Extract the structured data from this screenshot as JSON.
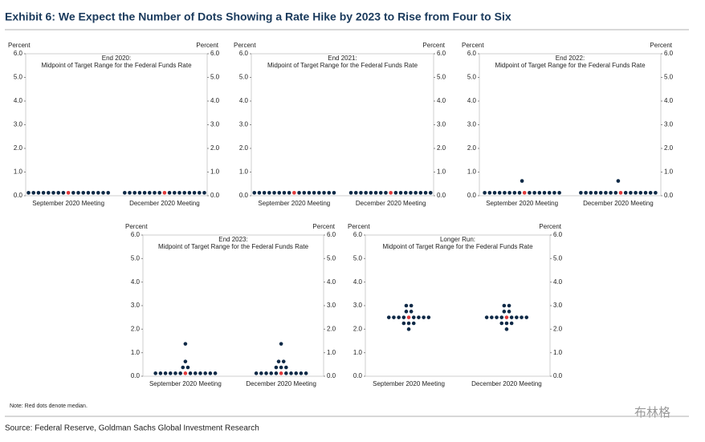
{
  "title": "Exhibit 6: We Expect the Number of Dots Showing a Rate Hike by 2023 to Rise from Four to Six",
  "note": "Note: Red dots denote median.",
  "source": "Source: Federal Reserve, Goldman Sachs Global Investment Research",
  "watermark": "布林格",
  "chart_data": [
    {
      "type": "dot",
      "title": "End 2020:",
      "subtitle": "Midpoint of Target Range for the Federal Funds Rate",
      "y_label": "Percent",
      "y2_label": "Percent",
      "categories": [
        "September 2020 Meeting",
        "December 2020 Meeting"
      ],
      "values": [
        [
          0.125,
          0.125,
          0.125,
          0.125,
          0.125,
          0.125,
          0.125,
          0.125,
          0.125,
          0.125,
          0.125,
          0.125,
          0.125,
          0.125,
          0.125,
          0.125,
          0.125
        ],
        [
          0.125,
          0.125,
          0.125,
          0.125,
          0.125,
          0.125,
          0.125,
          0.125,
          0.125,
          0.125,
          0.125,
          0.125,
          0.125,
          0.125,
          0.125,
          0.125,
          0.125
        ]
      ],
      "medians": [
        0.125,
        0.125
      ],
      "color": "#0f2a47",
      "median_color": "#e0383a",
      "ylim": [
        0,
        6
      ],
      "yticks": [
        {
          "value": 0,
          "label": "0.0"
        },
        {
          "value": 1,
          "label": "1.0"
        },
        {
          "value": 2,
          "label": "2.0"
        },
        {
          "value": 3,
          "label": "3.0"
        },
        {
          "value": 4,
          "label": "4.0"
        },
        {
          "value": 5,
          "label": "5.0"
        },
        {
          "value": 6,
          "label": "6.0"
        }
      ]
    },
    {
      "type": "dot",
      "title": "End 2021:",
      "subtitle": "Midpoint of Target Range for the Federal Funds Rate",
      "y_label": "Percent",
      "y2_label": "Percent",
      "categories": [
        "September 2020 Meeting",
        "December 2020 Meeting"
      ],
      "values": [
        [
          0.125,
          0.125,
          0.125,
          0.125,
          0.125,
          0.125,
          0.125,
          0.125,
          0.125,
          0.125,
          0.125,
          0.125,
          0.125,
          0.125,
          0.125,
          0.125,
          0.125
        ],
        [
          0.125,
          0.125,
          0.125,
          0.125,
          0.125,
          0.125,
          0.125,
          0.125,
          0.125,
          0.125,
          0.125,
          0.125,
          0.125,
          0.125,
          0.125,
          0.125,
          0.125
        ]
      ],
      "medians": [
        0.125,
        0.125
      ],
      "color": "#0f2a47",
      "median_color": "#e0383a",
      "ylim": [
        0,
        6
      ],
      "yticks": [
        {
          "value": 0,
          "label": "0.0"
        },
        {
          "value": 1,
          "label": "1.0"
        },
        {
          "value": 2,
          "label": "2.0"
        },
        {
          "value": 3,
          "label": "3.0"
        },
        {
          "value": 4,
          "label": "4.0"
        },
        {
          "value": 5,
          "label": "5.0"
        },
        {
          "value": 6,
          "label": "6.0"
        }
      ]
    },
    {
      "type": "dot",
      "title": "End 2022:",
      "subtitle": "Midpoint of Target Range for the Federal Funds Rate",
      "y_label": "Percent",
      "y2_label": "Percent",
      "categories": [
        "September 2020 Meeting",
        "December 2020 Meeting"
      ],
      "values": [
        [
          0.125,
          0.125,
          0.125,
          0.125,
          0.125,
          0.125,
          0.125,
          0.125,
          0.125,
          0.125,
          0.125,
          0.125,
          0.125,
          0.125,
          0.125,
          0.125,
          0.625
        ],
        [
          0.125,
          0.125,
          0.125,
          0.125,
          0.125,
          0.125,
          0.125,
          0.125,
          0.125,
          0.125,
          0.125,
          0.125,
          0.125,
          0.125,
          0.125,
          0.125,
          0.625
        ]
      ],
      "medians": [
        0.125,
        0.125
      ],
      "color": "#0f2a47",
      "median_color": "#e0383a",
      "ylim": [
        0,
        6
      ],
      "yticks": [
        {
          "value": 0,
          "label": "0.0"
        },
        {
          "value": 1,
          "label": "1.0"
        },
        {
          "value": 2,
          "label": "2.0"
        },
        {
          "value": 3,
          "label": "3.0"
        },
        {
          "value": 4,
          "label": "4.0"
        },
        {
          "value": 5,
          "label": "5.0"
        },
        {
          "value": 6,
          "label": "6.0"
        }
      ]
    },
    {
      "type": "dot",
      "title": "End 2023:",
      "subtitle": "Midpoint of Target Range for the Federal Funds Rate",
      "y_label": "Percent",
      "y2_label": "Percent",
      "categories": [
        "September 2020 Meeting",
        "December 2020 Meeting"
      ],
      "values": [
        [
          0.125,
          0.125,
          0.125,
          0.125,
          0.125,
          0.125,
          0.125,
          0.125,
          0.125,
          0.125,
          0.125,
          0.125,
          0.125,
          0.375,
          0.375,
          0.625,
          1.375
        ],
        [
          0.125,
          0.125,
          0.125,
          0.125,
          0.125,
          0.125,
          0.125,
          0.125,
          0.125,
          0.125,
          0.125,
          0.375,
          0.375,
          0.375,
          0.625,
          0.625,
          1.375
        ]
      ],
      "medians": [
        0.125,
        0.125
      ],
      "color": "#0f2a47",
      "median_color": "#e0383a",
      "ylim": [
        0,
        6
      ],
      "yticks": [
        {
          "value": 0,
          "label": "0.0"
        },
        {
          "value": 1,
          "label": "1.0"
        },
        {
          "value": 2,
          "label": "2.0"
        },
        {
          "value": 3,
          "label": "3.0"
        },
        {
          "value": 4,
          "label": "4.0"
        },
        {
          "value": 5,
          "label": "5.0"
        },
        {
          "value": 6,
          "label": "6.0"
        }
      ]
    },
    {
      "type": "dot",
      "title": "Longer Run:",
      "subtitle": "Midpoint of Target Range for the Federal Funds Rate",
      "y_label": "Percent",
      "y2_label": "Percent",
      "categories": [
        "September 2020 Meeting",
        "December 2020 Meeting"
      ],
      "values": [
        [
          2.0,
          2.25,
          2.25,
          2.25,
          2.5,
          2.5,
          2.5,
          2.5,
          2.5,
          2.5,
          2.5,
          2.5,
          2.5,
          2.75,
          2.75,
          3.0,
          3.0
        ],
        [
          2.0,
          2.25,
          2.25,
          2.25,
          2.5,
          2.5,
          2.5,
          2.5,
          2.5,
          2.5,
          2.5,
          2.5,
          2.5,
          2.75,
          2.75,
          3.0,
          3.0
        ]
      ],
      "medians": [
        2.5,
        2.5
      ],
      "color": "#0f2a47",
      "median_color": "#e0383a",
      "ylim": [
        0,
        6
      ],
      "yticks": [
        {
          "value": 0,
          "label": "0.0"
        },
        {
          "value": 1,
          "label": "1.0"
        },
        {
          "value": 2,
          "label": "2.0"
        },
        {
          "value": 3,
          "label": "3.0"
        },
        {
          "value": 4,
          "label": "4.0"
        },
        {
          "value": 5,
          "label": "5.0"
        },
        {
          "value": 6,
          "label": "6.0"
        }
      ]
    }
  ]
}
